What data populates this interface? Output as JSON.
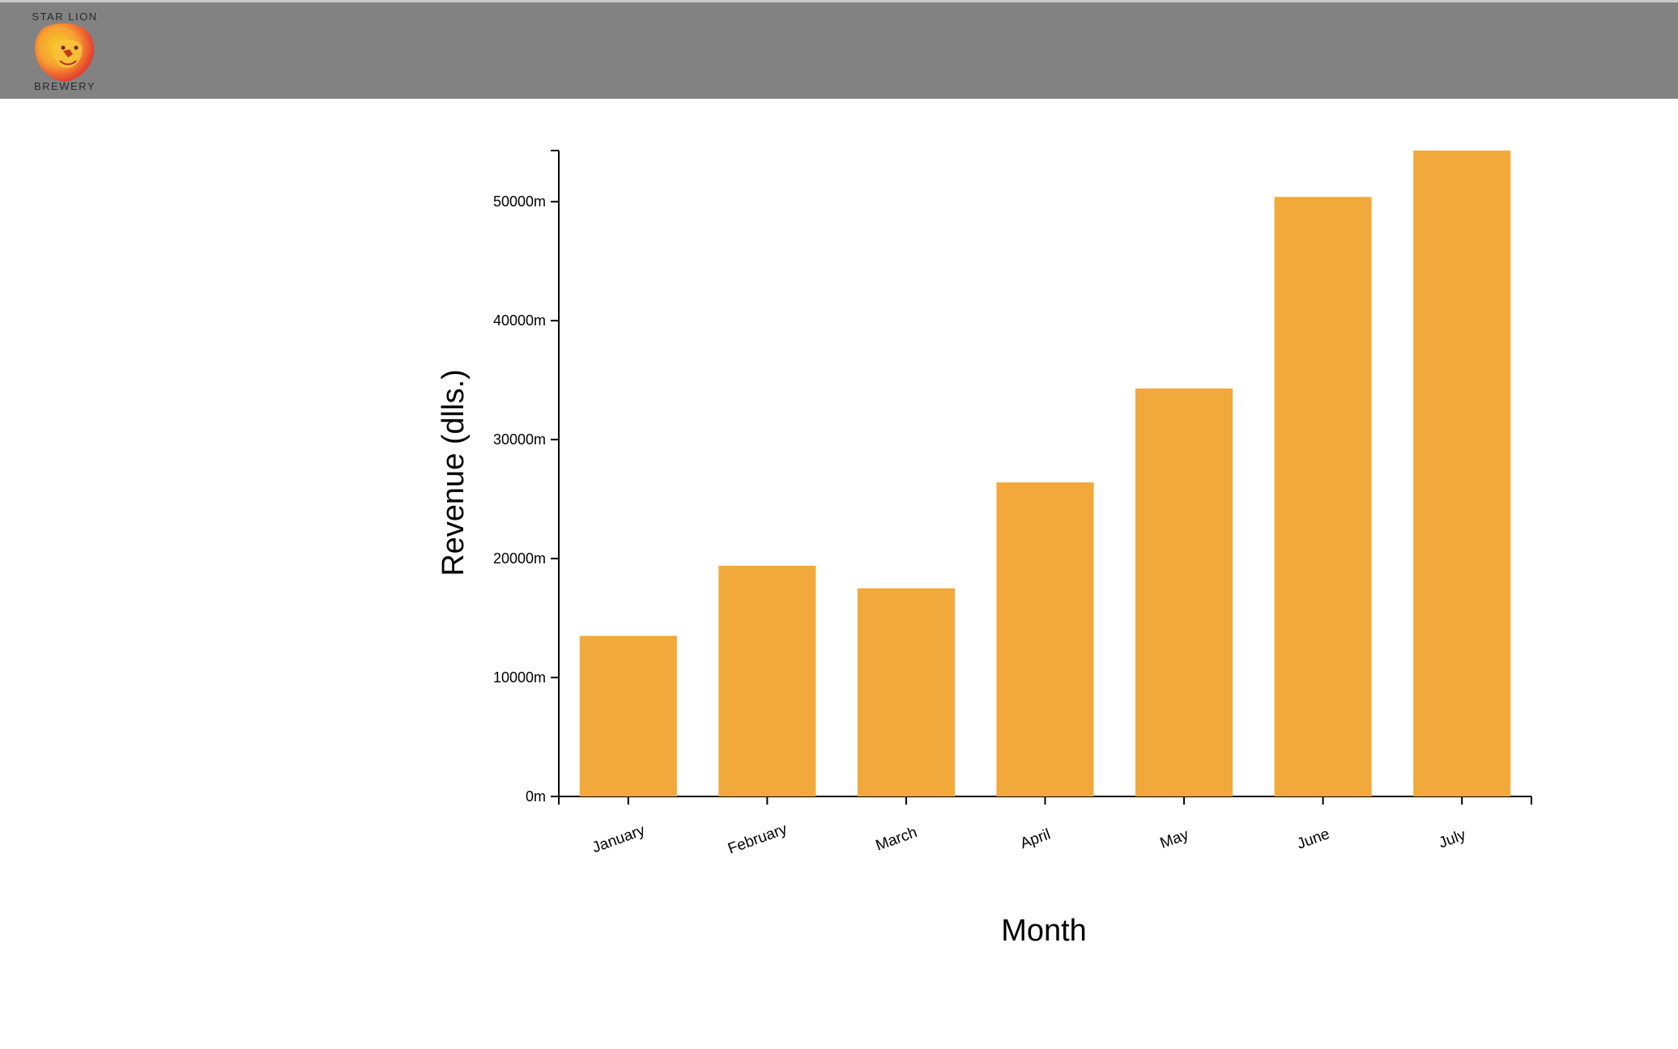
{
  "header": {
    "logo": {
      "line1": "STAR LION",
      "line2": "BREWERY",
      "icon": "lion-head-icon",
      "colors": [
        "#e63b2e",
        "#f7b733",
        "#f5d020"
      ]
    },
    "background": "#828282"
  },
  "chart_data": {
    "type": "bar",
    "categories": [
      "January",
      "February",
      "March",
      "April",
      "May",
      "June",
      "July"
    ],
    "values": [
      13500,
      19400,
      17500,
      26400,
      34300,
      50400,
      54300
    ],
    "tick_values": [
      0,
      10000,
      20000,
      30000,
      40000,
      50000
    ],
    "tick_labels": [
      "0m",
      "10000m",
      "20000m",
      "30000m",
      "40000m",
      "50000m"
    ],
    "ylim": [
      0,
      54300
    ],
    "title": "",
    "xlabel": "Month",
    "ylabel": "Revenue (dlls.)",
    "bar_color": "#f2a93b",
    "grid": false,
    "legend": "none"
  }
}
